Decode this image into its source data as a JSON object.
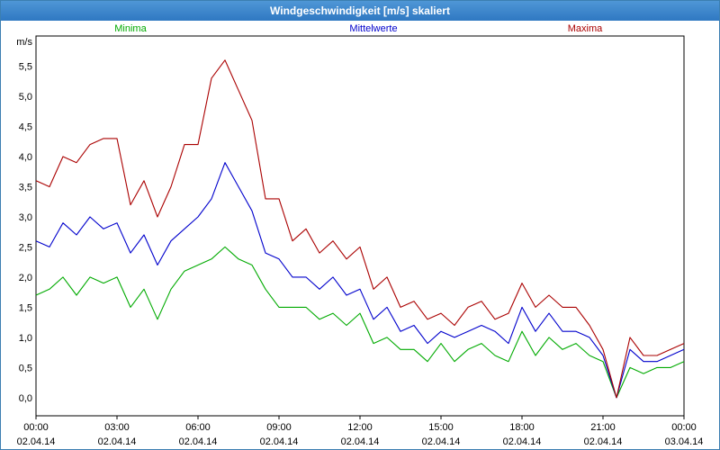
{
  "window": {
    "title": "Windgeschwindigkeit [m/s] skaliert"
  },
  "chart_data": {
    "type": "line",
    "title": "Windgeschwindigkeit [m/s] skaliert",
    "ylabel": "m/s",
    "ylim": [
      -0.3,
      6.0
    ],
    "y_ticks": [
      {
        "v": 0.0,
        "label": "0,0"
      },
      {
        "v": 0.5,
        "label": "0,5"
      },
      {
        "v": 1.0,
        "label": "1,0"
      },
      {
        "v": 1.5,
        "label": "1,5"
      },
      {
        "v": 2.0,
        "label": "2,0"
      },
      {
        "v": 2.5,
        "label": "2,5"
      },
      {
        "v": 3.0,
        "label": "3,0"
      },
      {
        "v": 3.5,
        "label": "3,5"
      },
      {
        "v": 4.0,
        "label": "4,0"
      },
      {
        "v": 4.5,
        "label": "4,5"
      },
      {
        "v": 5.0,
        "label": "5,0"
      },
      {
        "v": 5.5,
        "label": "5,5"
      }
    ],
    "xlim": [
      0,
      24
    ],
    "x_ticks": [
      {
        "h": 0,
        "time": "00:00",
        "date": "02.04.14"
      },
      {
        "h": 3,
        "time": "03:00",
        "date": "02.04.14"
      },
      {
        "h": 6,
        "time": "06:00",
        "date": "02.04.14"
      },
      {
        "h": 9,
        "time": "09:00",
        "date": "02.04.14"
      },
      {
        "h": 12,
        "time": "12:00",
        "date": "02.04.14"
      },
      {
        "h": 15,
        "time": "15:00",
        "date": "02.04.14"
      },
      {
        "h": 18,
        "time": "18:00",
        "date": "02.04.14"
      },
      {
        "h": 21,
        "time": "21:00",
        "date": "02.04.14"
      },
      {
        "h": 24,
        "time": "00:00",
        "date": "03.04.14"
      }
    ],
    "grid": true,
    "x": [
      0,
      0.5,
      1,
      1.5,
      2,
      2.5,
      3,
      3.5,
      4,
      4.5,
      5,
      5.5,
      6,
      6.5,
      7,
      7.5,
      8,
      8.5,
      9,
      9.5,
      10,
      10.5,
      11,
      11.5,
      12,
      12.5,
      13,
      13.5,
      14,
      14.5,
      15,
      15.5,
      16,
      16.5,
      17,
      17.5,
      18,
      18.5,
      19,
      19.5,
      20,
      20.5,
      21,
      21.5,
      22,
      22.5,
      23,
      23.5,
      24
    ],
    "series": [
      {
        "name": "Minima",
        "color": "#00aa00",
        "values": [
          1.7,
          1.8,
          2.0,
          1.7,
          2.0,
          1.9,
          2.0,
          1.5,
          1.8,
          1.3,
          1.8,
          2.1,
          2.2,
          2.3,
          2.5,
          2.3,
          2.2,
          1.8,
          1.5,
          1.5,
          1.5,
          1.3,
          1.4,
          1.2,
          1.4,
          0.9,
          1.0,
          0.8,
          0.8,
          0.6,
          0.9,
          0.6,
          0.8,
          0.9,
          0.7,
          0.6,
          1.1,
          0.7,
          1.0,
          0.8,
          0.9,
          0.7,
          0.6,
          0.0,
          0.5,
          0.4,
          0.5,
          0.5,
          0.6
        ]
      },
      {
        "name": "Mittelwerte",
        "color": "#0000cc",
        "values": [
          2.6,
          2.5,
          2.9,
          2.7,
          3.0,
          2.8,
          2.9,
          2.4,
          2.7,
          2.2,
          2.6,
          2.8,
          3.0,
          3.3,
          3.9,
          3.5,
          3.1,
          2.4,
          2.3,
          2.0,
          2.0,
          1.8,
          2.0,
          1.7,
          1.8,
          1.3,
          1.5,
          1.1,
          1.2,
          0.9,
          1.1,
          1.0,
          1.1,
          1.2,
          1.1,
          0.9,
          1.5,
          1.1,
          1.4,
          1.1,
          1.1,
          1.0,
          0.7,
          0.0,
          0.8,
          0.6,
          0.6,
          0.7,
          0.8
        ]
      },
      {
        "name": "Maxima",
        "color": "#aa0000",
        "values": [
          3.6,
          3.5,
          4.0,
          3.9,
          4.2,
          4.3,
          4.3,
          3.2,
          3.6,
          3.0,
          3.5,
          4.2,
          4.2,
          5.3,
          5.6,
          5.1,
          4.6,
          3.3,
          3.3,
          2.6,
          2.8,
          2.4,
          2.6,
          2.3,
          2.5,
          1.8,
          2.0,
          1.5,
          1.6,
          1.3,
          1.4,
          1.2,
          1.5,
          1.6,
          1.3,
          1.4,
          1.9,
          1.5,
          1.7,
          1.5,
          1.5,
          1.2,
          0.8,
          0.0,
          1.0,
          0.7,
          0.7,
          0.8,
          0.9
        ]
      }
    ]
  }
}
